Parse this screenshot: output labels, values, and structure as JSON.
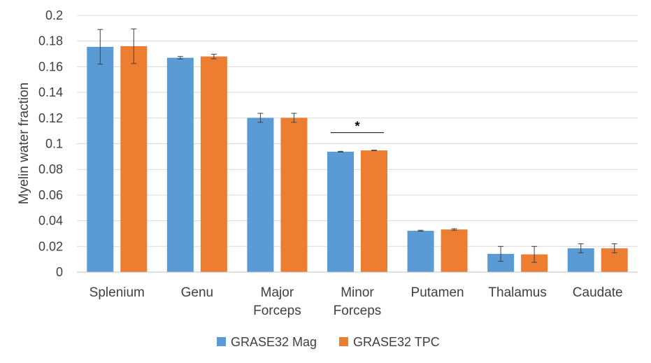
{
  "chart_data": {
    "type": "bar",
    "title": "",
    "xlabel": "",
    "ylabel": "Myelin water fraction",
    "ylim": [
      0,
      0.2
    ],
    "yticks": [
      "0",
      "0.02",
      "0.04",
      "0.06",
      "0.08",
      "0.1",
      "0.12",
      "0.14",
      "0.16",
      "0.18",
      "0.2"
    ],
    "grid": true,
    "legend_position": "bottom",
    "categories": [
      [
        "Splenium"
      ],
      [
        "Genu"
      ],
      [
        "Major",
        "Forceps"
      ],
      [
        "Minor",
        "Forceps"
      ],
      [
        "Putamen"
      ],
      [
        "Thalamus"
      ],
      [
        "Caudate"
      ]
    ],
    "series": [
      {
        "name": "GRASE32 Mag",
        "color": "#5b9bd5",
        "values": [
          0.1755,
          0.167,
          0.1202,
          0.0938,
          0.0322,
          0.0142,
          0.0185
        ],
        "errors": [
          0.0135,
          0.001,
          0.0035,
          0.0003,
          0.0004,
          0.0058,
          0.0035
        ]
      },
      {
        "name": "GRASE32 TPC",
        "color": "#ed7d31",
        "values": [
          0.176,
          0.168,
          0.1202,
          0.0948,
          0.0332,
          0.0138,
          0.0185
        ],
        "errors": [
          0.0135,
          0.0018,
          0.0035,
          0.0002,
          0.0006,
          0.0062,
          0.0035
        ]
      }
    ],
    "annotations": [
      {
        "text": "*",
        "category_index": 3
      }
    ]
  }
}
